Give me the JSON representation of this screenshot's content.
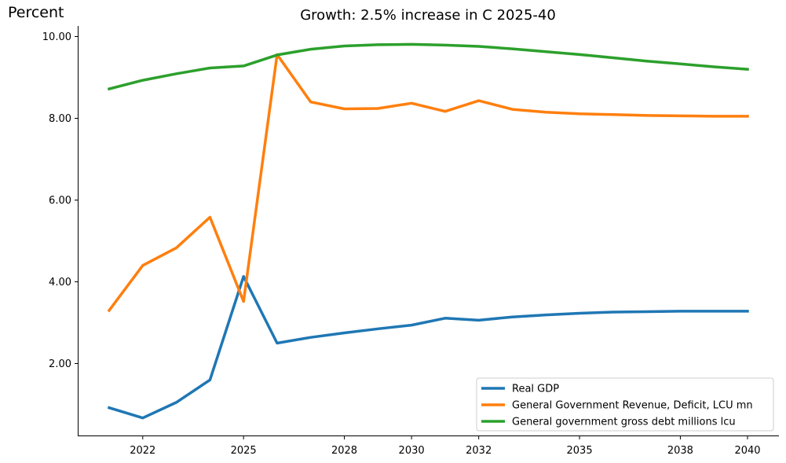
{
  "chart_data": {
    "type": "line",
    "title": "Growth: 2.5% increase in C 2025-40",
    "ylabel": "Percent",
    "xlabel": "",
    "x": [
      2021,
      2022,
      2023,
      2024,
      2025,
      2026,
      2027,
      2028,
      2029,
      2030,
      2031,
      2032,
      2033,
      2034,
      2035,
      2036,
      2037,
      2038,
      2039,
      2040
    ],
    "x_tick_labels": [
      "2022",
      "2025",
      "2028",
      "2030",
      "2032",
      "2035",
      "2038",
      "2040"
    ],
    "y_ticks": [
      "2.00",
      "4.00",
      "6.00",
      "8.00",
      "10.00"
    ],
    "ylim": [
      0.4,
      10.3
    ],
    "legend_position": "lower-right",
    "grid": false,
    "series": [
      {
        "name": "Real GDP",
        "color": "#1f77b4",
        "values": [
          0.92,
          0.67,
          1.05,
          1.6,
          4.13,
          2.5,
          2.64,
          2.75,
          2.85,
          2.94,
          3.11,
          3.06,
          3.14,
          3.19,
          3.23,
          3.26,
          3.27,
          3.28,
          3.28,
          3.28
        ]
      },
      {
        "name": "General Government Revenue, Deficit, LCU mn",
        "color": "#ff7f0e",
        "values": [
          3.3,
          4.4,
          4.83,
          5.58,
          3.52,
          9.56,
          8.4,
          8.23,
          8.24,
          8.37,
          8.17,
          8.43,
          8.22,
          8.15,
          8.11,
          8.09,
          8.07,
          8.06,
          8.05,
          8.05
        ]
      },
      {
        "name": "General government gross debt millions lcu",
        "color": "#2ca02c",
        "values": [
          8.72,
          8.93,
          9.09,
          9.23,
          9.28,
          9.55,
          9.69,
          9.77,
          9.8,
          9.81,
          9.79,
          9.76,
          9.7,
          9.63,
          9.56,
          9.48,
          9.4,
          9.33,
          9.26,
          9.2
        ]
      }
    ]
  }
}
